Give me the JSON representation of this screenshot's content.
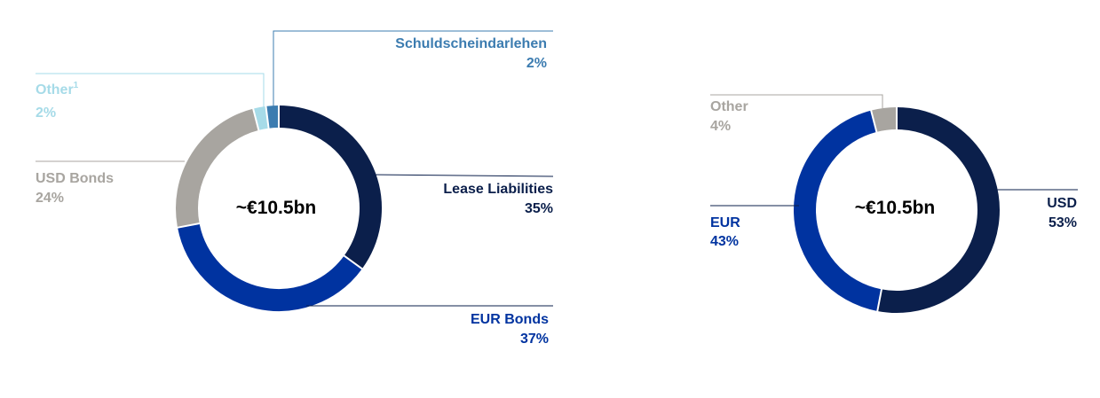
{
  "chart_data": [
    {
      "type": "pie",
      "donut": true,
      "center_label": "~€10.5bn",
      "slices": [
        {
          "name": "Lease Liabilities",
          "value": 35,
          "value_label": "35%",
          "color": "#0b1f4b"
        },
        {
          "name": "EUR Bonds",
          "value": 37,
          "value_label": "37%",
          "color": "#0033a0"
        },
        {
          "name": "USD Bonds",
          "value": 24,
          "value_label": "24%",
          "color": "#a8a5a0"
        },
        {
          "name": "Other",
          "footnote_marker": "1",
          "value": 2,
          "value_label": "2%",
          "color": "#a6dbe8"
        },
        {
          "name": "Schuldscheindarlehen",
          "value": 2,
          "value_label": "2%",
          "color": "#3c7cb0"
        }
      ]
    },
    {
      "type": "pie",
      "donut": true,
      "center_label": "~€10.5bn",
      "slices": [
        {
          "name": "USD",
          "value": 53,
          "value_label": "53%",
          "color": "#0b1f4b"
        },
        {
          "name": "EUR",
          "value": 43,
          "value_label": "43%",
          "color": "#0033a0"
        },
        {
          "name": "Other",
          "value": 4,
          "value_label": "4%",
          "color": "#a8a5a0"
        }
      ]
    }
  ]
}
